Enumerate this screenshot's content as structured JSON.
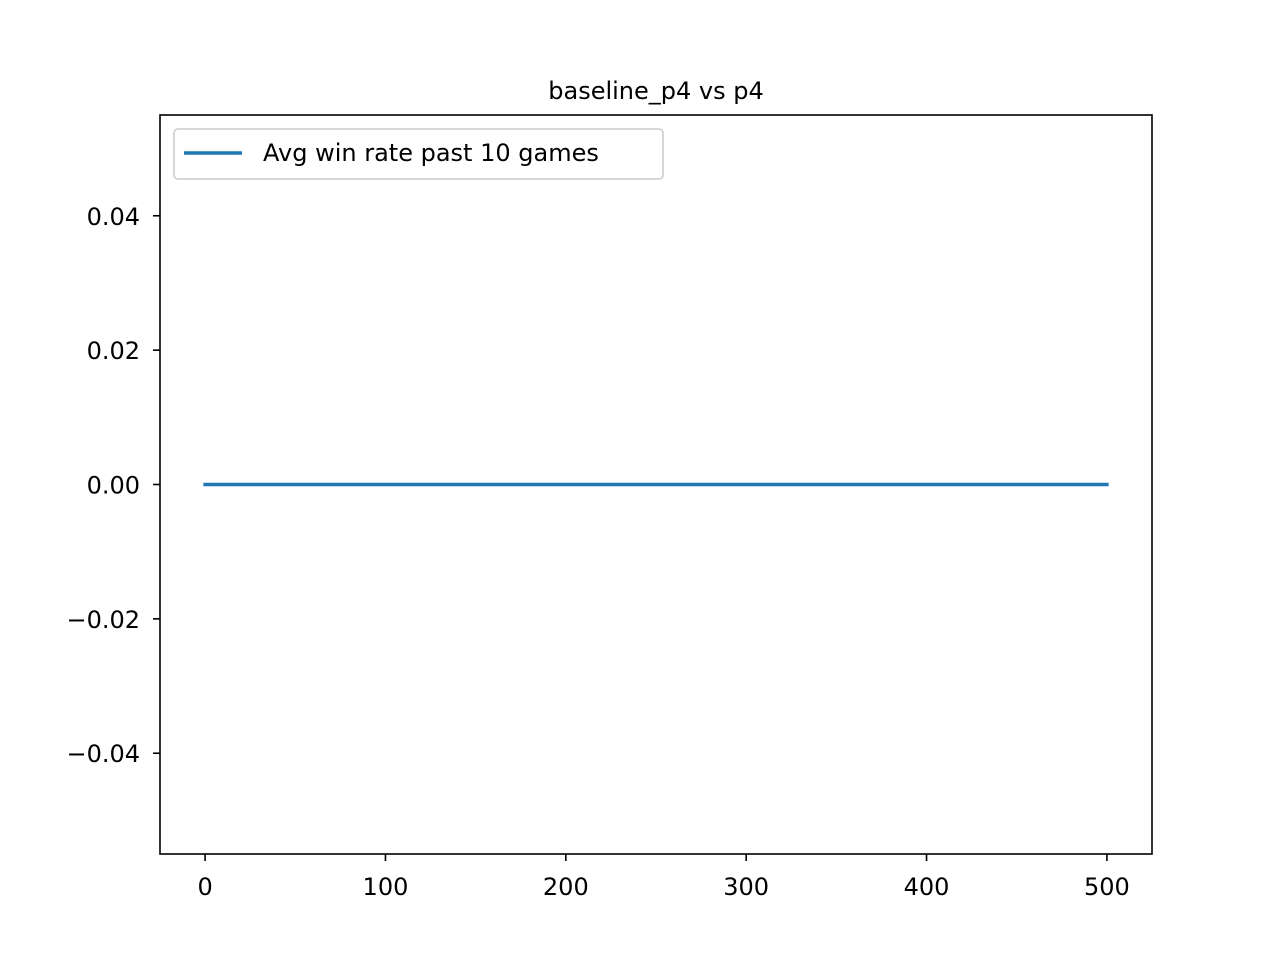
{
  "chart_data": {
    "type": "line",
    "title": "baseline_p4 vs p4",
    "xlabel": "",
    "ylabel": "",
    "xlim": [
      -25,
      525
    ],
    "ylim": [
      -0.055,
      0.055
    ],
    "xticks": [
      0,
      100,
      200,
      300,
      400,
      500
    ],
    "xtick_labels": [
      "0",
      "100",
      "200",
      "300",
      "400",
      "500"
    ],
    "yticks": [
      -0.04,
      -0.02,
      0.0,
      0.02,
      0.04
    ],
    "ytick_labels": [
      "−0.04",
      "−0.02",
      "0.00",
      "0.02",
      "0.04"
    ],
    "grid": false,
    "legend_position": "upper left",
    "series": [
      {
        "name": "Avg win rate past 10 games",
        "color": "#1f77b4",
        "x": [
          0,
          500
        ],
        "y": [
          0,
          0
        ]
      }
    ]
  }
}
